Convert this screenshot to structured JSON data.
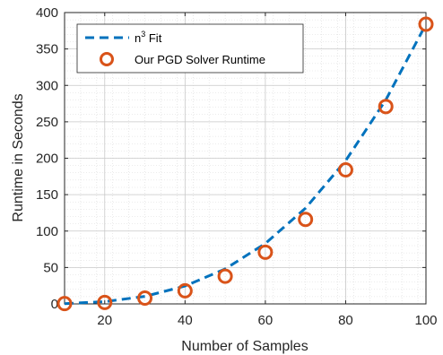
{
  "chart_data": {
    "type": "line",
    "xlabel": "Number of Samples",
    "ylabel": "Runtime in Seconds",
    "xlim": [
      10,
      100
    ],
    "ylim": [
      0,
      400
    ],
    "x_ticks": [
      20,
      40,
      60,
      80,
      100
    ],
    "y_ticks": [
      0,
      50,
      100,
      150,
      200,
      250,
      300,
      350,
      400
    ],
    "grid": true,
    "minor_grid": true,
    "legend_position": "top-left",
    "colors": {
      "fit": "#0072BD",
      "measured": "#D95319"
    },
    "series": [
      {
        "name": "n^3 Fit",
        "label_base": "n",
        "label_exp": "3",
        "label_suffix": " Fit",
        "style": "dashed-line",
        "x": [
          10,
          20,
          30,
          40,
          50,
          60,
          70,
          80,
          90,
          100
        ],
        "y": [
          0.4,
          3.1,
          10.4,
          24.5,
          48,
          83,
          131.5,
          196.5,
          280,
          384
        ]
      },
      {
        "name": "Our PGD Solver Runtime",
        "style": "circle-markers",
        "x": [
          10,
          20,
          30,
          40,
          50,
          60,
          70,
          80,
          90,
          100
        ],
        "y": [
          0.4,
          2,
          8,
          18,
          38,
          71,
          116,
          184,
          271,
          384
        ]
      }
    ]
  }
}
